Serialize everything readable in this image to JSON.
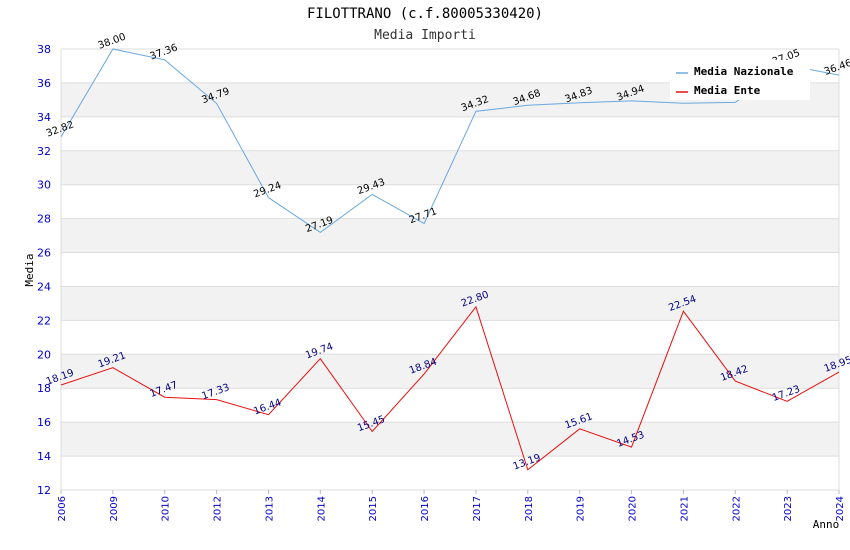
{
  "colors": {
    "nazionale": "#6ba8e0",
    "ente": "#e81010",
    "band": "#f2f2f2",
    "tick": "#0000cc"
  },
  "chart_data": {
    "type": "line",
    "title": "FILOTTRANO (c.f.80005330420)",
    "subtitle": "Media Importi",
    "xlabel": "Anno",
    "ylabel": "Media",
    "ylim": [
      12,
      38
    ],
    "yticks": [
      12,
      14,
      16,
      18,
      20,
      22,
      24,
      26,
      28,
      30,
      32,
      34,
      36,
      38
    ],
    "categories": [
      "2006",
      "2009",
      "2010",
      "2012",
      "2013",
      "2014",
      "2015",
      "2016",
      "2017",
      "2018",
      "2019",
      "2020",
      "2021",
      "2022",
      "2023",
      "2024"
    ],
    "legend_position": "top-right",
    "series": [
      {
        "name": "Media Nazionale",
        "values": [
          32.82,
          38.0,
          37.36,
          34.79,
          29.24,
          27.19,
          29.43,
          27.71,
          34.32,
          34.68,
          34.83,
          34.94,
          34.8,
          34.85,
          37.05,
          36.46
        ],
        "labels": [
          "32.82",
          "38.00",
          "37.36",
          "34.79",
          "29.24",
          "27.19",
          "29.43",
          "27.71",
          "34.32",
          "34.68",
          "34.83",
          "34.94",
          "",
          "",
          "37.05",
          "36.46"
        ]
      },
      {
        "name": "Media Ente",
        "values": [
          18.19,
          19.21,
          17.47,
          17.33,
          16.44,
          19.74,
          15.45,
          18.84,
          22.8,
          13.19,
          15.61,
          14.53,
          22.54,
          18.42,
          17.23,
          18.95
        ],
        "labels": [
          "18.19",
          "19.21",
          "17.47",
          "17.33",
          "16.44",
          "19.74",
          "15.45",
          "18.84",
          "22.80",
          "13.19",
          "15.61",
          "14.53",
          "22.54",
          "18.42",
          "17.23",
          "18.95"
        ]
      }
    ]
  }
}
